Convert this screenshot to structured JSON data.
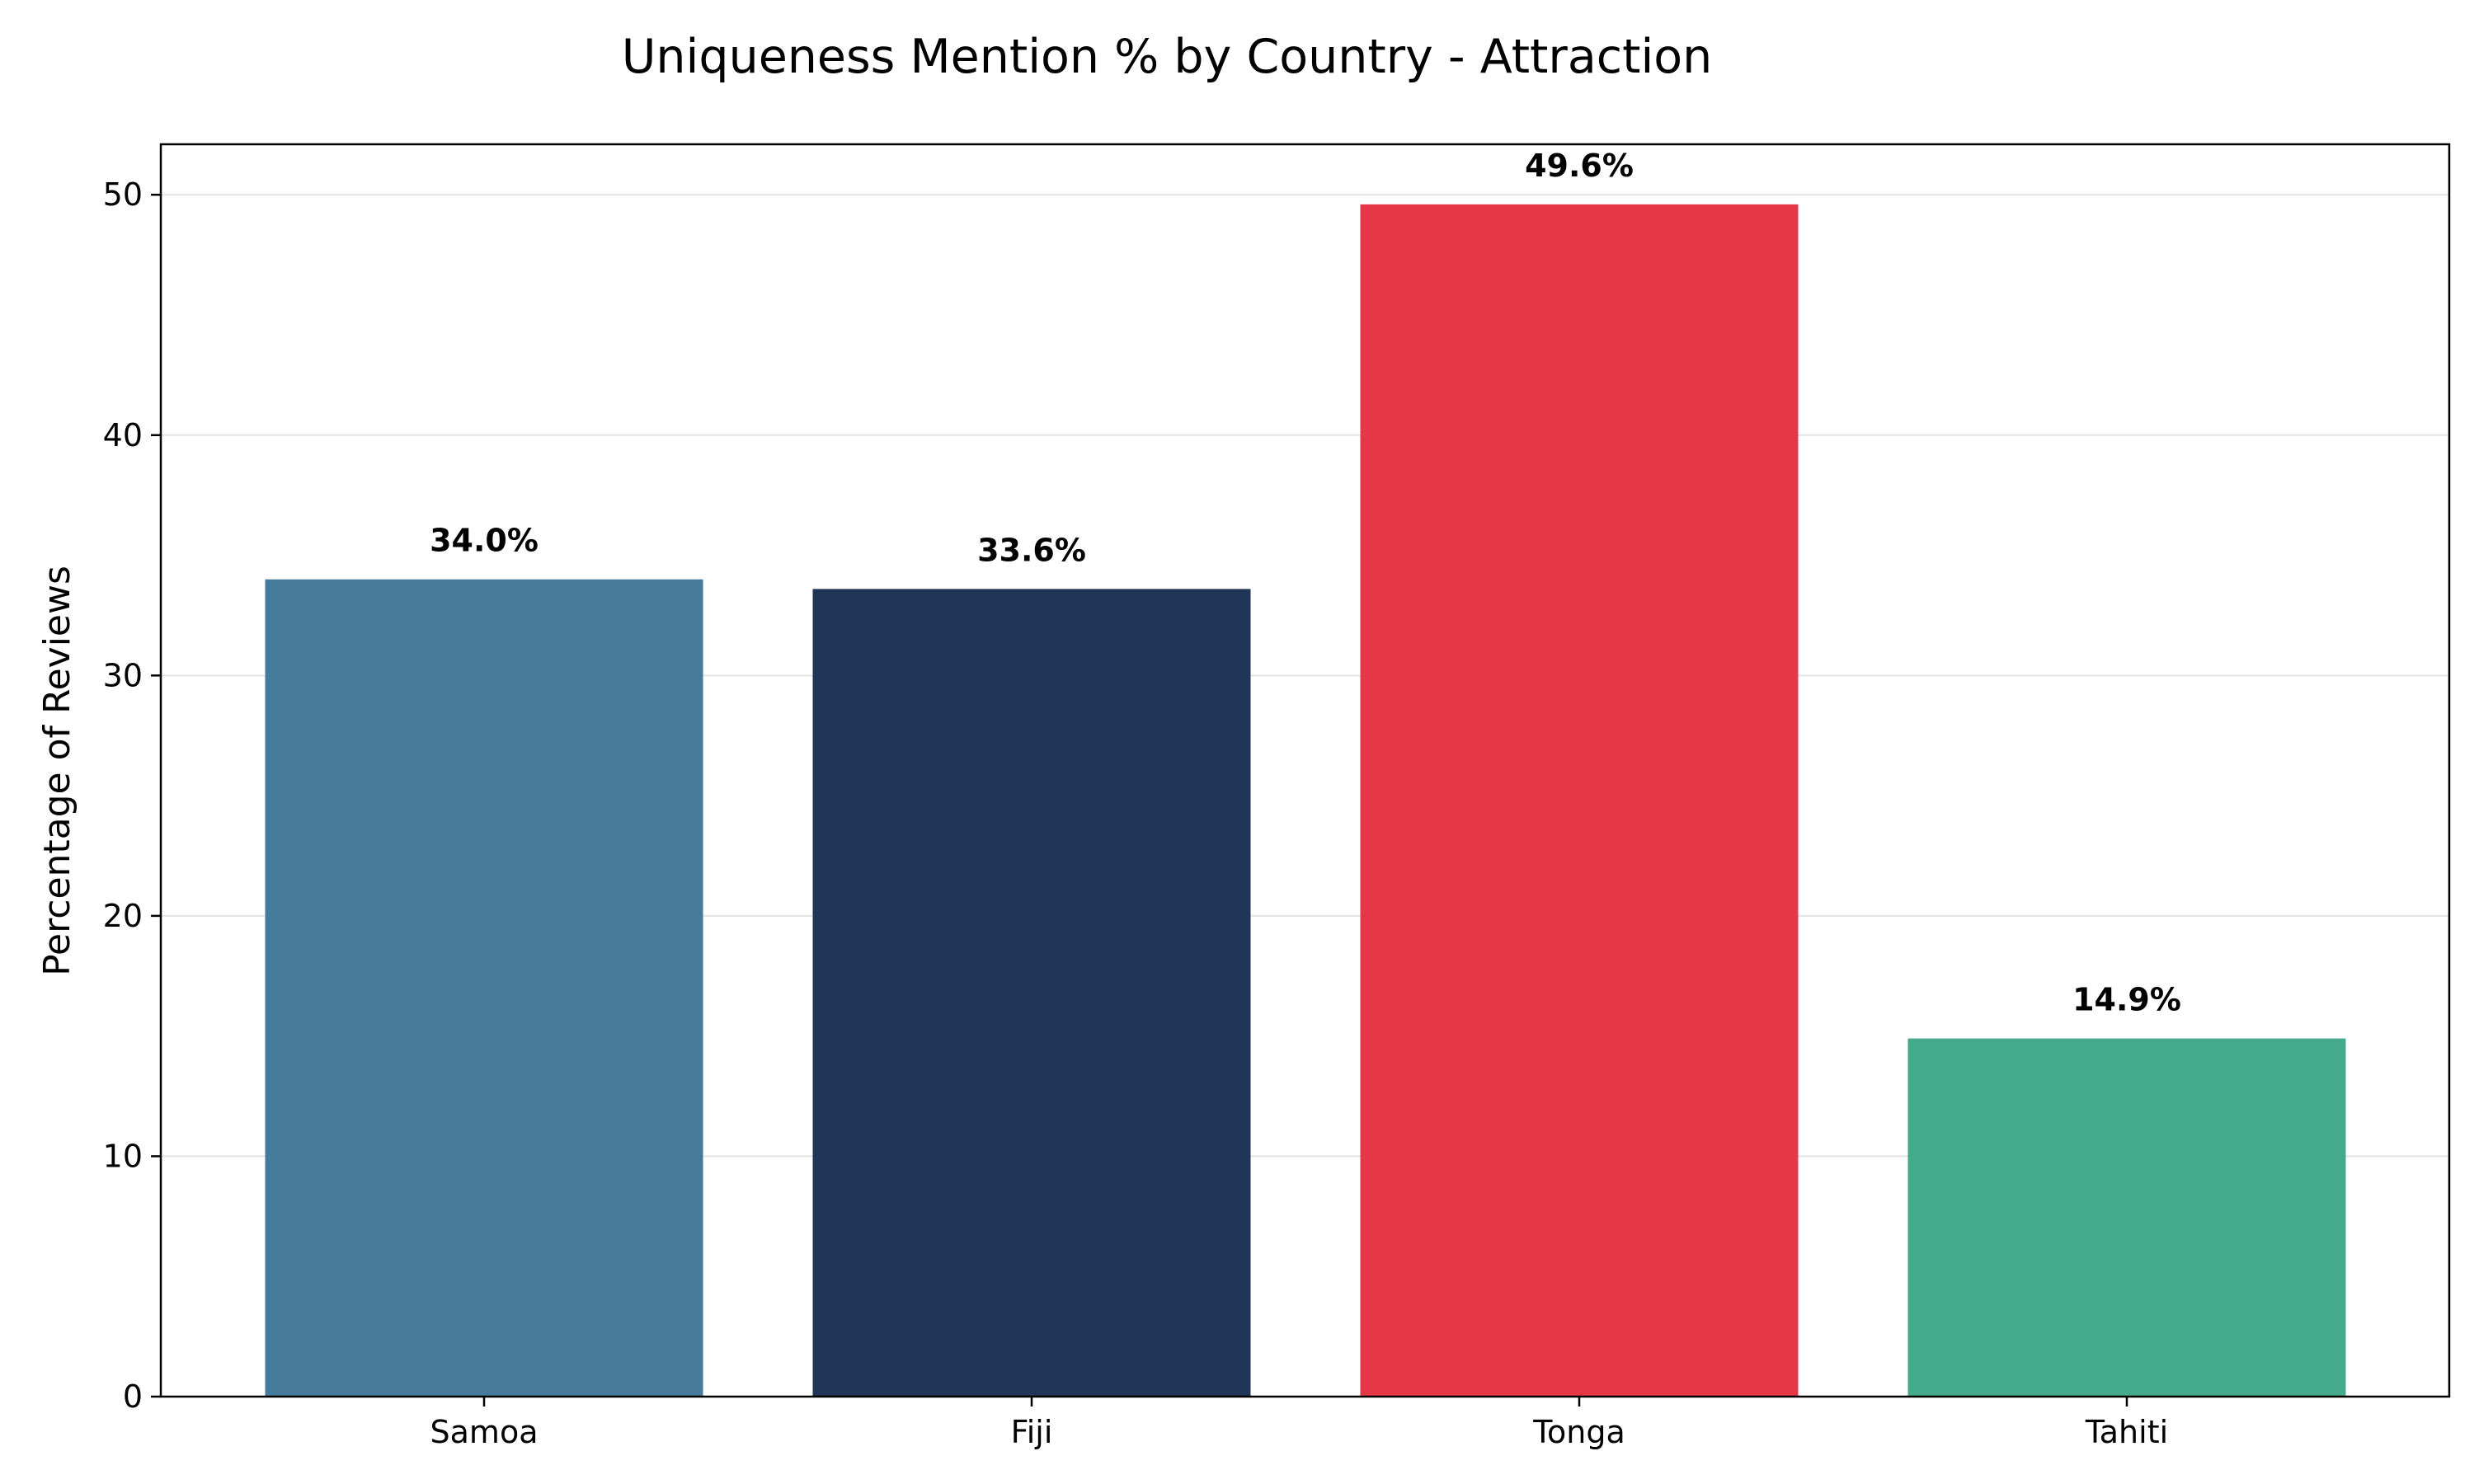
{
  "chart_data": {
    "type": "bar",
    "title": "Uniqueness Mention % by Country - Attraction",
    "xlabel": "",
    "ylabel": "Percentage of Reviews",
    "categories": [
      "Samoa",
      "Fiji",
      "Tonga",
      "Tahiti"
    ],
    "values": [
      34.0,
      33.6,
      49.6,
      14.9
    ],
    "data_labels": [
      "34.0%",
      "33.6%",
      "49.6%",
      "14.9%"
    ],
    "colors": [
      "#467b9c",
      "#203657",
      "#e63746",
      "#45aa8b"
    ],
    "ylim": [
      0,
      52.1
    ],
    "yticks": [
      0,
      10,
      20,
      30,
      40,
      50
    ],
    "grid": true,
    "grid_axis": "y",
    "legend": false
  }
}
